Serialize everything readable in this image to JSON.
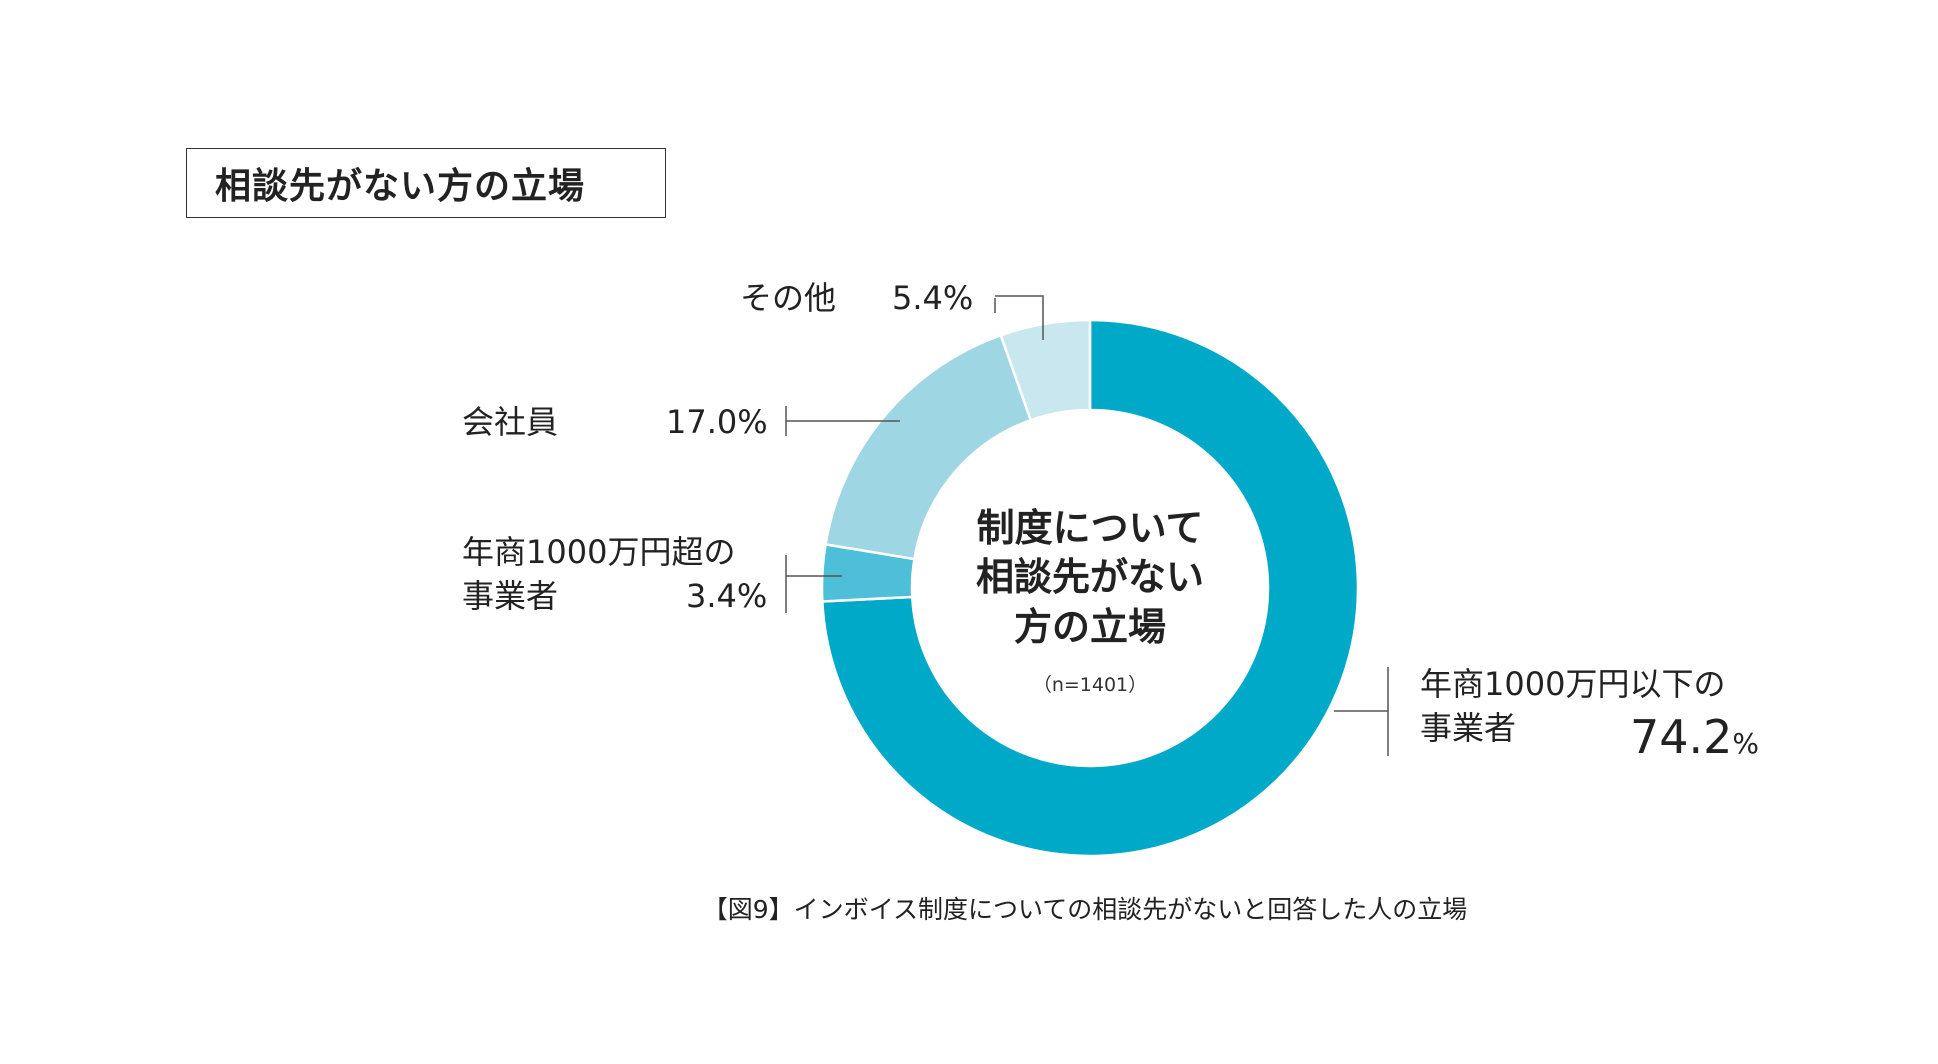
{
  "header": {
    "title": "相談先がない方の立場"
  },
  "chart_data": {
    "type": "pie",
    "variant": "donut",
    "title": "相談先がない方の立場",
    "center_label": [
      "制度について",
      "相談先がない",
      "方の立場"
    ],
    "sample_size": "（n=1401）",
    "slices": [
      {
        "label": "年商1000万円以下の事業者",
        "label_lines": [
          "年商1000万円以下の",
          "事業者"
        ],
        "value": 74.2,
        "value_text": "74.2",
        "unit": "%",
        "color": "#00a9c8"
      },
      {
        "label": "年商1000万円超の事業者",
        "label_lines": [
          "年商1000万円超の",
          "事業者"
        ],
        "value": 3.4,
        "value_text": "3.4%",
        "color": "#4dbfd9"
      },
      {
        "label": "会社員",
        "value": 17.0,
        "value_text": "17.0%",
        "color": "#9fd6e4"
      },
      {
        "label": "その他",
        "value": 5.4,
        "value_text": "5.4%",
        "color": "#c8e7ef"
      }
    ],
    "direction": "clockwise",
    "start": "top",
    "caption": "【図9】インボイス制度についての相談先がないと回答した人の立場"
  }
}
